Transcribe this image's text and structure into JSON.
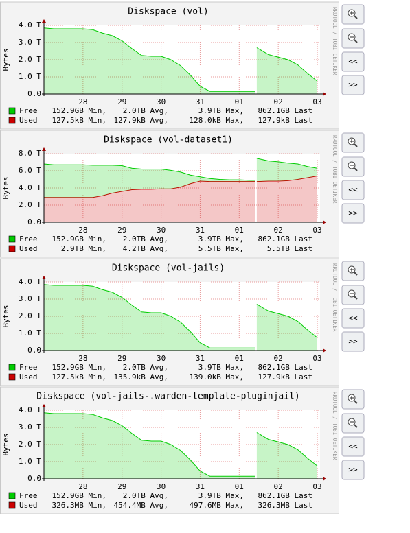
{
  "controls": {
    "back": "<<",
    "forward": ">>"
  },
  "chart_data": [
    {
      "type": "area",
      "stacked": true,
      "title": "Diskspace (vol)",
      "ylabel": "Bytes",
      "watermark": "RRDTOOL / TOBI OETIKER",
      "grid": true,
      "x": [
        27.0,
        27.25,
        27.5,
        27.75,
        28,
        28.25,
        28.5,
        28.75,
        29,
        29.25,
        29.5,
        29.75,
        30,
        30.25,
        30.5,
        30.75,
        31,
        31.25,
        31.5,
        31.75,
        32,
        32.25,
        32.4,
        32.42,
        32.45,
        32.75,
        33,
        33.25,
        33.5,
        33.75,
        34.0
      ],
      "xlim": [
        27.0,
        34.07
      ],
      "xticks": [
        28,
        29,
        30,
        31,
        {
          "value": 32,
          "label": "01"
        },
        {
          "value": 33,
          "label": "02"
        },
        {
          "value": 34,
          "label": "03"
        }
      ],
      "ylim": [
        0,
        4
      ],
      "yticks": [
        {
          "value": 0,
          "label": "0.0"
        },
        {
          "value": 1,
          "label": "1.0 T"
        },
        {
          "value": 2,
          "label": "2.0 T"
        },
        {
          "value": 3,
          "label": "3.0 T"
        },
        {
          "value": 4,
          "label": "4.0 T"
        }
      ],
      "series": [
        {
          "name": "Free",
          "color": "#00cc00",
          "legend_stats": [
            "152.9GB Min,",
            "2.0TB Avg,",
            "3.9TB Max,",
            "862.1GB Last"
          ],
          "values": [
            3.85,
            3.8,
            3.8,
            3.8,
            3.8,
            3.75,
            3.55,
            3.4,
            3.1,
            2.65,
            2.25,
            2.2,
            2.2,
            2.0,
            1.65,
            1.1,
            0.45,
            0.15,
            0.15,
            0.15,
            0.15,
            0.15,
            0.15,
            null,
            2.7,
            2.3,
            2.15,
            2.0,
            1.7,
            1.2,
            0.75
          ]
        },
        {
          "name": "Used",
          "color": "#cc0000",
          "legend_stats": [
            "127.5kB Min,",
            "127.9kB Avg,",
            "128.0kB Max,",
            "127.9kB Last"
          ],
          "values": [
            0,
            0,
            0,
            0,
            0,
            0,
            0,
            0,
            0,
            0,
            0,
            0,
            0,
            0,
            0,
            0,
            0,
            0,
            0,
            0,
            0,
            0,
            0,
            null,
            0,
            0,
            0,
            0,
            0,
            0,
            0
          ]
        }
      ]
    },
    {
      "type": "area",
      "stacked": true,
      "title": "Diskspace (vol-dataset1)",
      "ylabel": "Bytes",
      "watermark": "RRDTOOL / TOBI OETIKER",
      "grid": true,
      "x": [
        27.0,
        27.25,
        27.5,
        27.75,
        28,
        28.25,
        28.5,
        28.75,
        29,
        29.25,
        29.5,
        29.75,
        30,
        30.25,
        30.5,
        30.75,
        31,
        31.25,
        31.5,
        31.75,
        32,
        32.25,
        32.4,
        32.42,
        32.45,
        32.75,
        33,
        33.25,
        33.5,
        33.75,
        34.0
      ],
      "xlim": [
        27.0,
        34.07
      ],
      "xticks": [
        28,
        29,
        30,
        31,
        {
          "value": 32,
          "label": "01"
        },
        {
          "value": 33,
          "label": "02"
        },
        {
          "value": 34,
          "label": "03"
        }
      ],
      "ylim": [
        0,
        8
      ],
      "yticks": [
        {
          "value": 0,
          "label": "0.0"
        },
        {
          "value": 2,
          "label": "2.0 T"
        },
        {
          "value": 4,
          "label": "4.0 T"
        },
        {
          "value": 6,
          "label": "6.0 T"
        },
        {
          "value": 8,
          "label": "8.0 T"
        }
      ],
      "series": [
        {
          "name": "Free",
          "color": "#00cc00",
          "legend_stats": [
            "152.9GB Min,",
            "2.0TB Avg,",
            "3.9TB Max,",
            "862.1GB Last"
          ],
          "values": [
            3.9,
            3.8,
            3.8,
            3.8,
            3.8,
            3.75,
            3.55,
            3.25,
            3.0,
            2.5,
            2.35,
            2.35,
            2.3,
            2.15,
            1.75,
            1.0,
            0.5,
            0.35,
            0.25,
            0.2,
            0.2,
            0.15,
            0.15,
            null,
            2.7,
            2.35,
            2.25,
            2.05,
            1.8,
            1.3,
            0.9
          ]
        },
        {
          "name": "Used",
          "color": "#cc0000",
          "legend_stats": [
            "2.9TB Min,",
            "4.2TB Avg,",
            "5.5TB Max,",
            "5.5TB Last"
          ],
          "values": [
            2.9,
            2.9,
            2.9,
            2.9,
            2.9,
            2.9,
            3.1,
            3.4,
            3.6,
            3.8,
            3.85,
            3.85,
            3.9,
            3.9,
            4.1,
            4.5,
            4.8,
            4.75,
            4.75,
            4.75,
            4.75,
            4.75,
            4.75,
            null,
            4.75,
            4.8,
            4.8,
            4.85,
            5.0,
            5.2,
            5.4
          ]
        }
      ]
    },
    {
      "type": "area",
      "stacked": true,
      "title": "Diskspace (vol-jails)",
      "ylabel": "Bytes",
      "watermark": "RRDTOOL / TOBI OETIKER",
      "grid": true,
      "x": [
        27.0,
        27.25,
        27.5,
        27.75,
        28,
        28.25,
        28.5,
        28.75,
        29,
        29.25,
        29.5,
        29.75,
        30,
        30.25,
        30.5,
        30.75,
        31,
        31.25,
        31.5,
        31.75,
        32,
        32.25,
        32.4,
        32.42,
        32.45,
        32.75,
        33,
        33.25,
        33.5,
        33.75,
        34.0
      ],
      "xlim": [
        27.0,
        34.07
      ],
      "xticks": [
        28,
        29,
        30,
        31,
        {
          "value": 32,
          "label": "01"
        },
        {
          "value": 33,
          "label": "02"
        },
        {
          "value": 34,
          "label": "03"
        }
      ],
      "ylim": [
        0,
        4
      ],
      "yticks": [
        {
          "value": 0,
          "label": "0.0"
        },
        {
          "value": 1,
          "label": "1.0 T"
        },
        {
          "value": 2,
          "label": "2.0 T"
        },
        {
          "value": 3,
          "label": "3.0 T"
        },
        {
          "value": 4,
          "label": "4.0 T"
        }
      ],
      "series": [
        {
          "name": "Free",
          "color": "#00cc00",
          "legend_stats": [
            "152.9GB Min,",
            "2.0TB Avg,",
            "3.9TB Max,",
            "862.1GB Last"
          ],
          "values": [
            3.85,
            3.8,
            3.8,
            3.8,
            3.8,
            3.75,
            3.55,
            3.4,
            3.1,
            2.65,
            2.25,
            2.2,
            2.2,
            2.0,
            1.65,
            1.1,
            0.45,
            0.15,
            0.15,
            0.15,
            0.15,
            0.15,
            0.15,
            null,
            2.7,
            2.3,
            2.15,
            2.0,
            1.7,
            1.2,
            0.75
          ]
        },
        {
          "name": "Used",
          "color": "#cc0000",
          "legend_stats": [
            "127.5kB Min,",
            "135.9kB Avg,",
            "139.0kB Max,",
            "127.9kB Last"
          ],
          "values": [
            0,
            0,
            0,
            0,
            0,
            0,
            0,
            0,
            0,
            0,
            0,
            0,
            0,
            0,
            0,
            0,
            0,
            0,
            0,
            0,
            0,
            0,
            0,
            null,
            0,
            0,
            0,
            0,
            0,
            0,
            0
          ]
        }
      ]
    },
    {
      "type": "area",
      "stacked": true,
      "title": "Diskspace (vol-jails-.warden-template-pluginjail)",
      "ylabel": "Bytes",
      "watermark": "RRDTOOL / TOBI OETIKER",
      "grid": true,
      "x": [
        27.0,
        27.25,
        27.5,
        27.75,
        28,
        28.25,
        28.5,
        28.75,
        29,
        29.25,
        29.5,
        29.75,
        30,
        30.25,
        30.5,
        30.75,
        31,
        31.25,
        31.5,
        31.75,
        32,
        32.25,
        32.4,
        32.42,
        32.45,
        32.75,
        33,
        33.25,
        33.5,
        33.75,
        34.0
      ],
      "xlim": [
        27.0,
        34.07
      ],
      "xticks": [
        28,
        29,
        30,
        31,
        {
          "value": 32,
          "label": "01"
        },
        {
          "value": 33,
          "label": "02"
        },
        {
          "value": 34,
          "label": "03"
        }
      ],
      "ylim": [
        0,
        4
      ],
      "yticks": [
        {
          "value": 0,
          "label": "0.0"
        },
        {
          "value": 1,
          "label": "1.0 T"
        },
        {
          "value": 2,
          "label": "2.0 T"
        },
        {
          "value": 3,
          "label": "3.0 T"
        },
        {
          "value": 4,
          "label": "4.0 T"
        }
      ],
      "series": [
        {
          "name": "Free",
          "color": "#00cc00",
          "legend_stats": [
            "152.9GB Min,",
            "2.0TB Avg,",
            "3.9TB Max,",
            "862.1GB Last"
          ],
          "values": [
            3.85,
            3.8,
            3.8,
            3.8,
            3.8,
            3.75,
            3.55,
            3.4,
            3.1,
            2.65,
            2.25,
            2.2,
            2.2,
            2.0,
            1.65,
            1.1,
            0.45,
            0.15,
            0.15,
            0.15,
            0.15,
            0.15,
            0.15,
            null,
            2.7,
            2.3,
            2.15,
            2.0,
            1.7,
            1.2,
            0.75
          ]
        },
        {
          "name": "Used",
          "color": "#cc0000",
          "legend_stats": [
            "326.3MB Min,",
            "454.4MB Avg,",
            "497.6MB Max,",
            "326.3MB Last"
          ],
          "values": [
            0,
            0,
            0,
            0,
            0,
            0,
            0,
            0,
            0,
            0,
            0,
            0,
            0,
            0,
            0,
            0,
            0,
            0,
            0,
            0,
            0,
            0,
            0,
            null,
            0,
            0,
            0,
            0,
            0,
            0,
            0
          ]
        }
      ]
    }
  ]
}
